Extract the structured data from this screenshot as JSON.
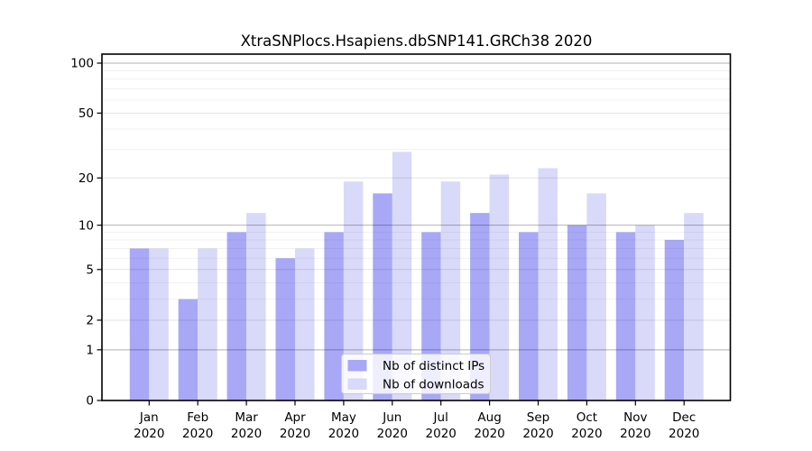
{
  "chart_data": {
    "type": "bar",
    "title": "XtraSNPlocs.Hsapiens.dbSNP141.GRCh38 2020",
    "categories": [
      "Jan",
      "Feb",
      "Mar",
      "Apr",
      "May",
      "Jun",
      "Jul",
      "Aug",
      "Sep",
      "Oct",
      "Nov",
      "Dec"
    ],
    "year_label": "2020",
    "series": [
      {
        "name": "Nb of distinct IPs",
        "color": "#a8a8f7",
        "values": [
          7,
          3,
          9,
          6,
          9,
          16,
          9,
          12,
          9,
          10,
          9,
          8
        ]
      },
      {
        "name": "Nb of downloads",
        "color": "#d9d9f9",
        "values": [
          7,
          7,
          12,
          7,
          19,
          29,
          19,
          21,
          23,
          16,
          10,
          12
        ]
      }
    ],
    "yscale": "log1p",
    "ylim": [
      0,
      100
    ],
    "yticks": [
      0,
      1,
      2,
      5,
      10,
      20,
      50,
      100
    ],
    "yticks_emphasis": [
      1,
      10,
      100
    ],
    "yticks_minor": [
      3,
      4,
      6,
      7,
      8,
      9,
      30,
      40,
      60,
      70,
      80,
      90
    ],
    "grid": true,
    "legend_position": "inside-bottom-center"
  }
}
